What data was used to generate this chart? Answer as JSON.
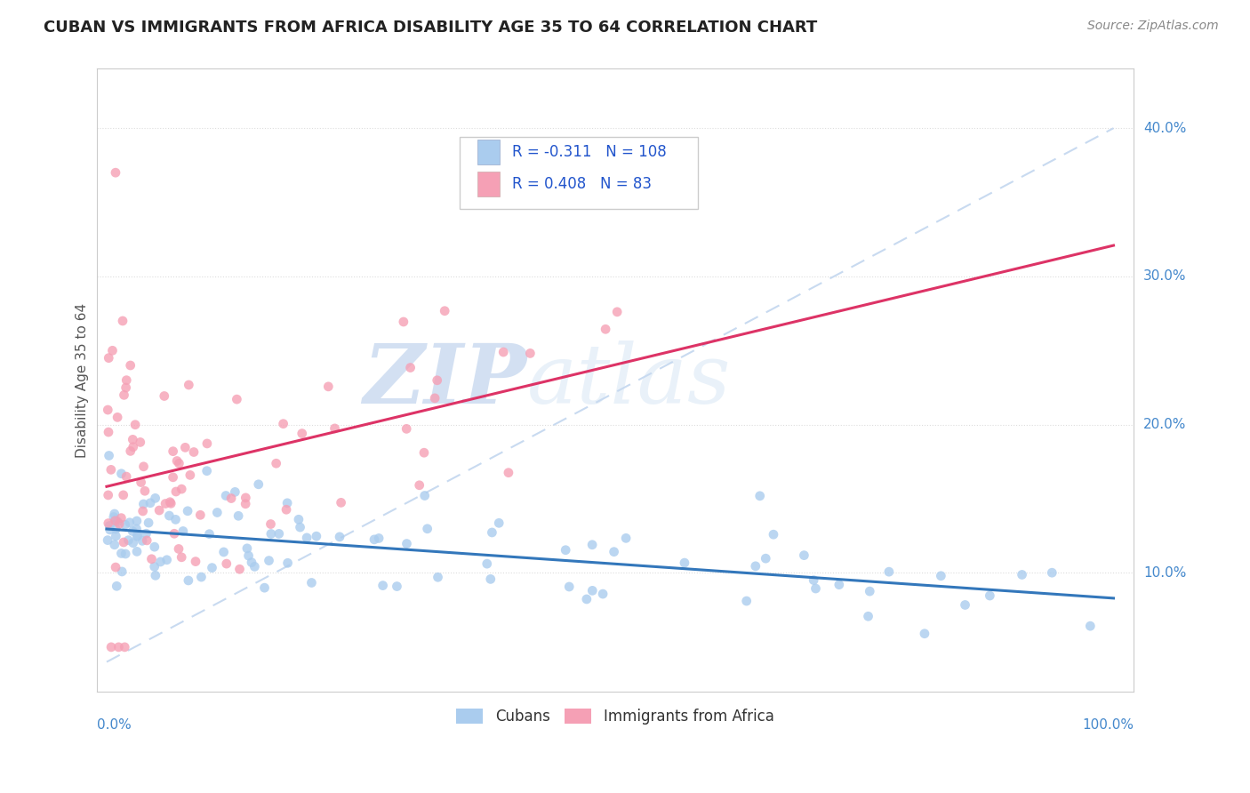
{
  "title": "CUBAN VS IMMIGRANTS FROM AFRICA DISABILITY AGE 35 TO 64 CORRELATION CHART",
  "source": "Source: ZipAtlas.com",
  "ylabel": "Disability Age 35 to 64",
  "legend_cubans_R": -0.311,
  "legend_cubans_N": 108,
  "legend_africa_R": 0.408,
  "legend_africa_N": 83,
  "blue_color": "#aaccee",
  "pink_color": "#f5a0b5",
  "blue_line_color": "#3377bb",
  "pink_line_color": "#dd3366",
  "dash_color": "#c8daf0",
  "watermark_color": "#c8daf0",
  "ytick_vals": [
    0.1,
    0.2,
    0.3,
    0.4
  ],
  "ytick_labels": [
    "10.0%",
    "20.0%",
    "30.0%",
    "40.0%"
  ],
  "xlim": [
    -0.01,
    1.02
  ],
  "ylim": [
    0.02,
    0.44
  ]
}
